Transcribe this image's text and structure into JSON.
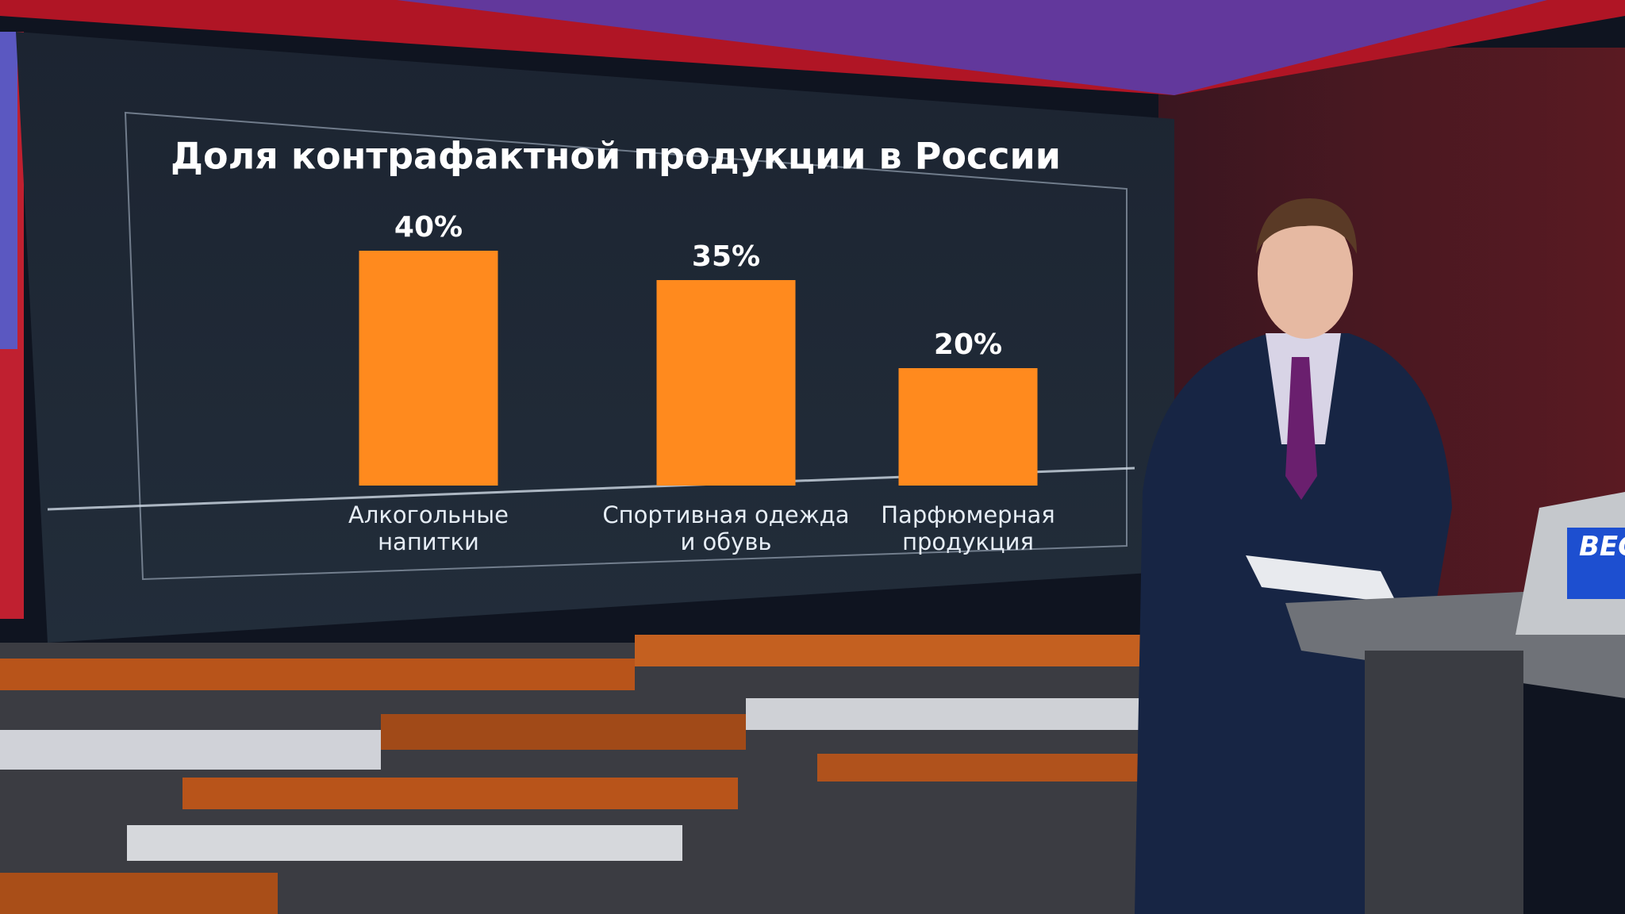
{
  "chart_data": {
    "type": "bar",
    "title": "Доля контрафактной продукции в России",
    "categories": [
      "Алкогольные\nнапитки",
      "Спортивная одежда\nи обувь",
      "Парфюмерная\nпродукция"
    ],
    "values": [
      40,
      35,
      20
    ],
    "value_labels": [
      "40%",
      "35%",
      "20%"
    ],
    "color": "#ff8a1e"
  },
  "logo_text": "ВЕСТ"
}
